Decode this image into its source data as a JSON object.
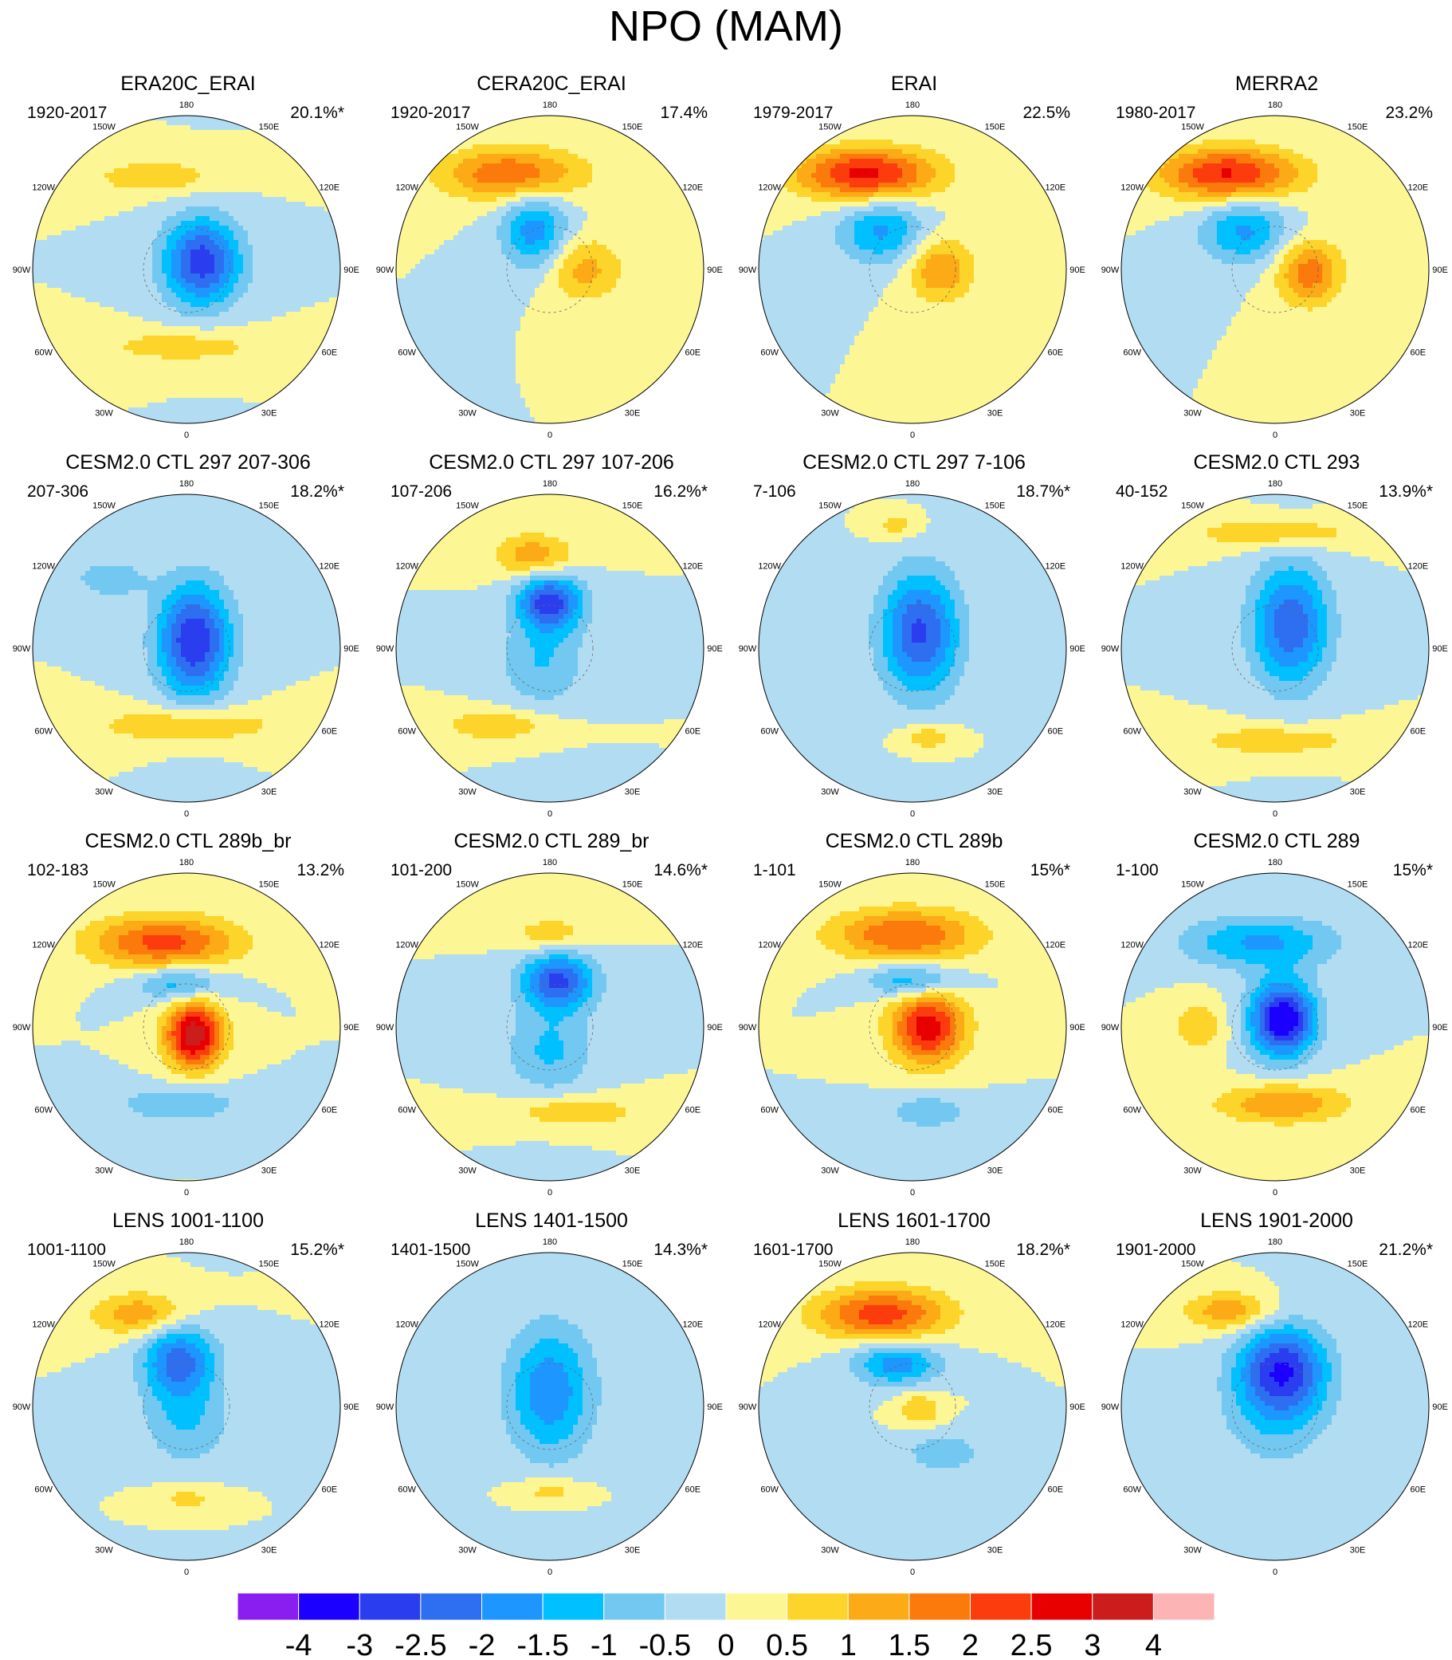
{
  "figure": {
    "title": "NPO (MAM)"
  },
  "chart_data": {
    "type": "contour-map",
    "projection": "north-polar-stereographic",
    "variable": "NPO pattern",
    "season": "MAM",
    "longitude_labels": [
      "180",
      "150E",
      "120E",
      "90E",
      "60E",
      "30E",
      "0",
      "30W",
      "60W",
      "90W",
      "120W",
      "150W"
    ],
    "colorbar": {
      "colors": [
        "#8a1ef0",
        "#1b00ff",
        "#2a3ef0",
        "#2e6ef0",
        "#1e96ff",
        "#00c0ff",
        "#72c8f0",
        "#b2dcf2",
        "#fdf694",
        "#fcd42a",
        "#fcaa16",
        "#fc7a0c",
        "#fc3c0c",
        "#e80000",
        "#cc1c1c",
        "#fcb4b4"
      ],
      "tick_labels": [
        "-4",
        "-3",
        "-2.5",
        "-2",
        "-1.5",
        "-1",
        "-0.5",
        "0",
        "0.5",
        "1",
        "1.5",
        "2",
        "2.5",
        "3",
        "4"
      ]
    },
    "panels": [
      {
        "title": "ERA20C_ERAI",
        "period": "1920-2017",
        "variance": "20.1%*",
        "features": [
          {
            "cx": 0.1,
            "cy": 0.05,
            "peak": -2.8,
            "sx": 0.18,
            "sy": 0.2
          },
          {
            "cx": -0.02,
            "cy": -0.5,
            "peak": 0.8,
            "sx": 0.4,
            "sy": 0.08
          },
          {
            "cx": -0.2,
            "cy": 0.6,
            "peak": 0.9,
            "sx": 0.3,
            "sy": 0.08
          }
        ]
      },
      {
        "title": "CERA20C_ERAI",
        "period": "1920-2017",
        "variance": "17.4%",
        "features": [
          {
            "cx": -0.25,
            "cy": 0.62,
            "peak": 2.0,
            "sx": 0.32,
            "sy": 0.12
          },
          {
            "cx": -0.1,
            "cy": 0.25,
            "peak": -1.8,
            "sx": 0.15,
            "sy": 0.18
          },
          {
            "cx": 0.22,
            "cy": 0.0,
            "peak": 1.2,
            "sx": 0.18,
            "sy": 0.15
          }
        ]
      },
      {
        "title": "ERAI",
        "period": "1979-2017",
        "variance": "22.5%",
        "features": [
          {
            "cx": -0.3,
            "cy": 0.62,
            "peak": 2.7,
            "sx": 0.32,
            "sy": 0.12
          },
          {
            "cx": -0.2,
            "cy": 0.25,
            "peak": -1.6,
            "sx": 0.2,
            "sy": 0.15
          },
          {
            "cx": 0.18,
            "cy": 0.0,
            "peak": 1.5,
            "sx": 0.15,
            "sy": 0.15
          }
        ]
      },
      {
        "title": "MERRA2",
        "period": "1980-2017",
        "variance": "23.2%",
        "features": [
          {
            "cx": -0.3,
            "cy": 0.62,
            "peak": 2.6,
            "sx": 0.32,
            "sy": 0.12
          },
          {
            "cx": -0.2,
            "cy": 0.25,
            "peak": -1.6,
            "sx": 0.2,
            "sy": 0.15
          },
          {
            "cx": 0.22,
            "cy": -0.02,
            "peak": 1.8,
            "sx": 0.15,
            "sy": 0.15
          }
        ]
      },
      {
        "title": "CESM2.0 CTL 297 207-306",
        "period": "207-306",
        "variance": "18.2%*",
        "features": [
          {
            "cx": 0.05,
            "cy": 0.05,
            "peak": -3.0,
            "sx": 0.17,
            "sy": 0.26
          },
          {
            "cx": 0.0,
            "cy": -0.5,
            "peak": 1.1,
            "sx": 0.4,
            "sy": 0.08
          },
          {
            "cx": -0.5,
            "cy": 0.45,
            "peak": -0.8,
            "sx": 0.18,
            "sy": 0.1
          }
        ]
      },
      {
        "title": "CESM2.0 CTL 297 107-206",
        "period": "107-206",
        "variance": "16.2%*",
        "features": [
          {
            "cx": -0.1,
            "cy": 0.6,
            "peak": 1.4,
            "sx": 0.18,
            "sy": 0.1
          },
          {
            "cx": 0.0,
            "cy": 0.3,
            "peak": -2.8,
            "sx": 0.15,
            "sy": 0.13
          },
          {
            "cx": -0.05,
            "cy": -0.1,
            "peak": -1.0,
            "sx": 0.2,
            "sy": 0.2
          },
          {
            "cx": -0.35,
            "cy": -0.5,
            "peak": 1.0,
            "sx": 0.25,
            "sy": 0.07
          }
        ]
      },
      {
        "title": "CESM2.0 CTL 297 7-106",
        "period": "7-106",
        "variance": "18.7%*",
        "features": [
          {
            "cx": -0.1,
            "cy": 0.8,
            "peak": 0.8,
            "sx": 0.1,
            "sy": 0.06
          },
          {
            "cx": 0.05,
            "cy": 0.1,
            "peak": -2.6,
            "sx": 0.18,
            "sy": 0.28
          },
          {
            "cx": 0.1,
            "cy": -0.58,
            "peak": 0.9,
            "sx": 0.12,
            "sy": 0.06
          }
        ]
      },
      {
        "title": "CESM2.0 CTL 293",
        "period": "40-152",
        "variance": "13.9%*",
        "features": [
          {
            "cx": 0.0,
            "cy": 0.75,
            "peak": 1.0,
            "sx": 0.38,
            "sy": 0.07
          },
          {
            "cx": 0.1,
            "cy": 0.15,
            "peak": -2.4,
            "sx": 0.18,
            "sy": 0.28
          },
          {
            "cx": 0.0,
            "cy": -0.6,
            "peak": 0.9,
            "sx": 0.38,
            "sy": 0.07
          }
        ]
      },
      {
        "title": "CESM2.0 CTL 289b_br",
        "period": "102-183",
        "variance": "13.2%",
        "features": [
          {
            "cx": -0.15,
            "cy": 0.55,
            "peak": 2.2,
            "sx": 0.34,
            "sy": 0.12
          },
          {
            "cx": -0.05,
            "cy": 0.28,
            "peak": -1.4,
            "sx": 0.2,
            "sy": 0.08
          },
          {
            "cx": 0.05,
            "cy": -0.05,
            "peak": 3.4,
            "sx": 0.13,
            "sy": 0.15
          },
          {
            "cx": -0.05,
            "cy": -0.5,
            "peak": -1.0,
            "sx": 0.28,
            "sy": 0.08
          }
        ]
      },
      {
        "title": "CESM2.0 CTL 289_br",
        "period": "101-200",
        "variance": "14.6%*",
        "features": [
          {
            "cx": 0.0,
            "cy": 0.6,
            "peak": 0.9,
            "sx": 0.18,
            "sy": 0.08
          },
          {
            "cx": 0.05,
            "cy": 0.3,
            "peak": -2.6,
            "sx": 0.17,
            "sy": 0.13
          },
          {
            "cx": 0.0,
            "cy": -0.15,
            "peak": -1.1,
            "sx": 0.2,
            "sy": 0.2
          },
          {
            "cx": 0.15,
            "cy": -0.55,
            "peak": 1.0,
            "sx": 0.3,
            "sy": 0.07
          }
        ]
      },
      {
        "title": "CESM2.0 CTL 289b",
        "period": "1-101",
        "variance": "15%*",
        "features": [
          {
            "cx": -0.05,
            "cy": 0.6,
            "peak": 2.0,
            "sx": 0.34,
            "sy": 0.12
          },
          {
            "cx": 0.0,
            "cy": 0.3,
            "peak": -1.6,
            "sx": 0.2,
            "sy": 0.08
          },
          {
            "cx": 0.1,
            "cy": 0.0,
            "peak": 2.8,
            "sx": 0.17,
            "sy": 0.17
          },
          {
            "cx": 0.1,
            "cy": -0.55,
            "peak": -0.9,
            "sx": 0.2,
            "sy": 0.08
          }
        ]
      },
      {
        "title": "CESM2.0 CTL 289",
        "period": "1-100",
        "variance": "15%*",
        "features": [
          {
            "cx": -0.1,
            "cy": 0.55,
            "peak": -1.6,
            "sx": 0.35,
            "sy": 0.12
          },
          {
            "cx": 0.05,
            "cy": 0.05,
            "peak": -3.6,
            "sx": 0.15,
            "sy": 0.17
          },
          {
            "cx": 0.05,
            "cy": -0.5,
            "peak": 1.5,
            "sx": 0.3,
            "sy": 0.09
          },
          {
            "cx": -0.5,
            "cy": 0.0,
            "peak": 0.9,
            "sx": 0.12,
            "sy": 0.12
          }
        ]
      },
      {
        "title": "LENS 1001-1100",
        "period": "1001-1100",
        "variance": "15.2%*",
        "features": [
          {
            "cx": -0.3,
            "cy": 0.6,
            "peak": 1.4,
            "sx": 0.22,
            "sy": 0.1
          },
          {
            "cx": -0.05,
            "cy": 0.3,
            "peak": -2.2,
            "sx": 0.17,
            "sy": 0.17
          },
          {
            "cx": 0.0,
            "cy": -0.1,
            "peak": -1.0,
            "sx": 0.2,
            "sy": 0.2
          },
          {
            "cx": 0.0,
            "cy": -0.6,
            "peak": 0.7,
            "sx": 0.15,
            "sy": 0.06
          }
        ]
      },
      {
        "title": "LENS 1401-1500",
        "period": "1401-1500",
        "variance": "14.3%*",
        "features": [
          {
            "cx": 0.0,
            "cy": 0.1,
            "peak": -1.9,
            "sx": 0.2,
            "sy": 0.3
          },
          {
            "cx": 0.0,
            "cy": -0.55,
            "peak": 0.8,
            "sx": 0.15,
            "sy": 0.06
          }
        ]
      },
      {
        "title": "LENS 1601-1700",
        "period": "1601-1700",
        "variance": "18.2%*",
        "features": [
          {
            "cx": -0.2,
            "cy": 0.6,
            "peak": 2.3,
            "sx": 0.3,
            "sy": 0.12
          },
          {
            "cx": -0.1,
            "cy": 0.28,
            "peak": -1.8,
            "sx": 0.2,
            "sy": 0.1
          },
          {
            "cx": 0.05,
            "cy": -0.02,
            "peak": 1.0,
            "sx": 0.1,
            "sy": 0.08
          },
          {
            "cx": 0.2,
            "cy": -0.3,
            "peak": -0.8,
            "sx": 0.2,
            "sy": 0.1
          }
        ]
      },
      {
        "title": "LENS 1901-2000",
        "period": "1901-2000",
        "variance": "21.2%*",
        "features": [
          {
            "cx": -0.3,
            "cy": 0.62,
            "peak": 1.4,
            "sx": 0.2,
            "sy": 0.09
          },
          {
            "cx": 0.05,
            "cy": 0.25,
            "peak": -2.7,
            "sx": 0.2,
            "sy": 0.2
          },
          {
            "cx": 0.0,
            "cy": -0.05,
            "peak": -0.9,
            "sx": 0.25,
            "sy": 0.25
          }
        ]
      }
    ]
  }
}
